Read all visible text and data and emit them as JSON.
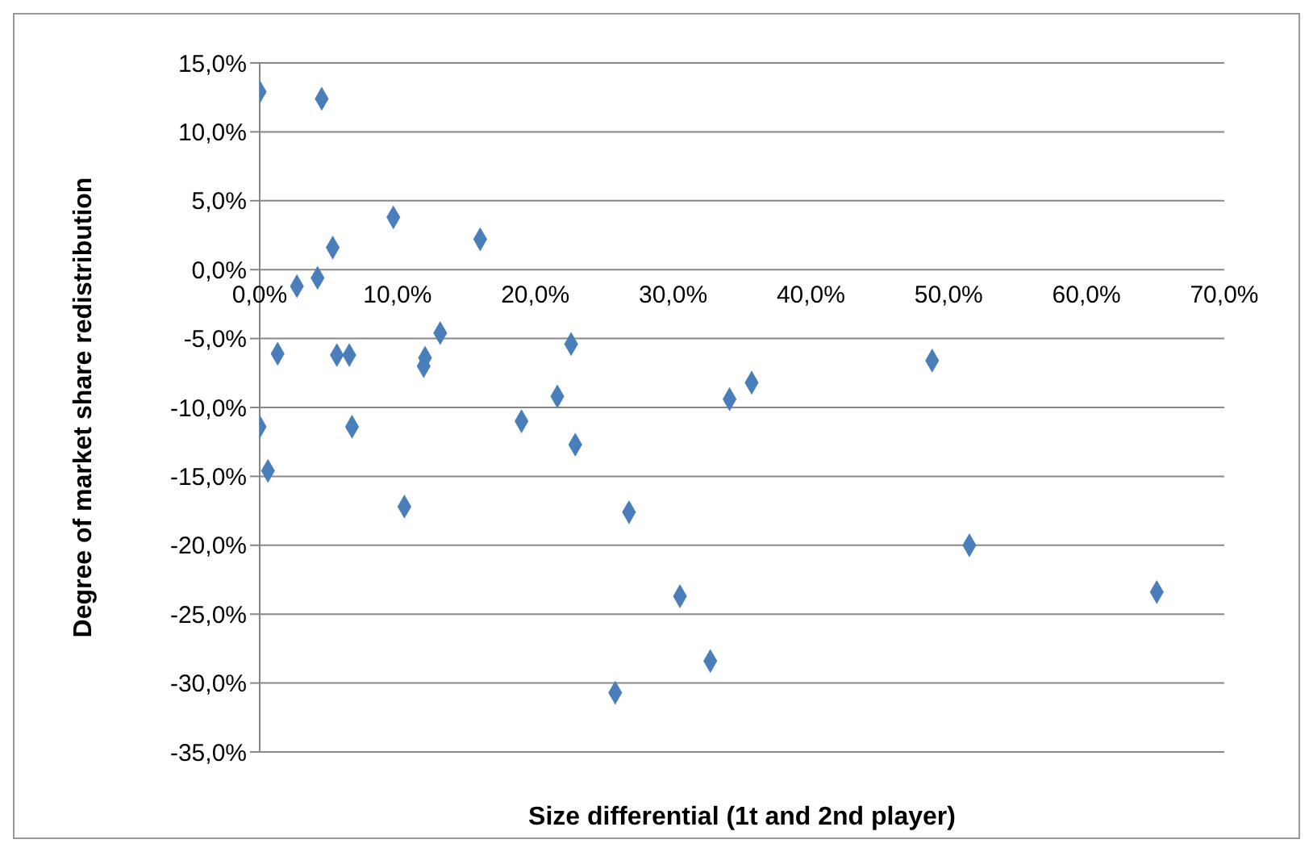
{
  "chart_data": {
    "type": "scatter",
    "xlabel": "Size differential (1t and 2nd player)",
    "ylabel": "Degree of market share redistribution",
    "x": [
      0,
      4.5,
      2.7,
      4.2,
      5.3,
      9.7,
      16.0,
      1.3,
      5.6,
      6.5,
      0,
      0.6,
      6.7,
      10.5,
      12.0,
      11.9,
      13.1,
      22.6,
      21.6,
      19.0,
      22.9,
      26.8,
      30.5,
      25.8,
      32.7,
      34.1,
      35.7,
      48.8,
      51.5,
      65.1
    ],
    "series": [
      {
        "color": "#4a7ebb",
        "values": [
          12.9,
          12.4,
          -1.2,
          -0.6,
          1.6,
          3.8,
          2.2,
          -6.1,
          -6.2,
          -6.2,
          -11.4,
          -14.6,
          -11.4,
          -17.2,
          -6.4,
          -7.0,
          -4.6,
          -5.4,
          -9.2,
          -11.0,
          -12.7,
          -17.6,
          -23.7,
          -30.7,
          -28.4,
          -9.4,
          -8.2,
          -6.6,
          -20.0,
          -23.4
        ]
      }
    ],
    "xlim": [
      0,
      70
    ],
    "xticks": [
      {
        "value": 0,
        "label": "0,0%"
      },
      {
        "value": 10,
        "label": "10,0%"
      },
      {
        "value": 20,
        "label": "20,0%"
      },
      {
        "value": 30,
        "label": "30,0%"
      },
      {
        "value": 40,
        "label": "40,0%"
      },
      {
        "value": 50,
        "label": "50,0%"
      },
      {
        "value": 60,
        "label": "60,0%"
      },
      {
        "value": 70,
        "label": "70,0%"
      }
    ],
    "ylim": [
      -35,
      15
    ],
    "yticks": [
      {
        "value": -35,
        "label": "-35,0%"
      },
      {
        "value": -30,
        "label": "-30,0%"
      },
      {
        "value": -25,
        "label": "-25,0%"
      },
      {
        "value": -20,
        "label": "-20,0%"
      },
      {
        "value": -15,
        "label": "-15,0%"
      },
      {
        "value": -10,
        "label": "-10,0%"
      },
      {
        "value": -5,
        "label": "-5,0%"
      },
      {
        "value": 0,
        "label": "0,0%"
      },
      {
        "value": 5,
        "label": "5,0%"
      },
      {
        "value": 10,
        "label": "10,0%"
      },
      {
        "value": 15,
        "label": "15,0%"
      }
    ],
    "grid": "y",
    "marker": "diamond",
    "legend": false
  }
}
